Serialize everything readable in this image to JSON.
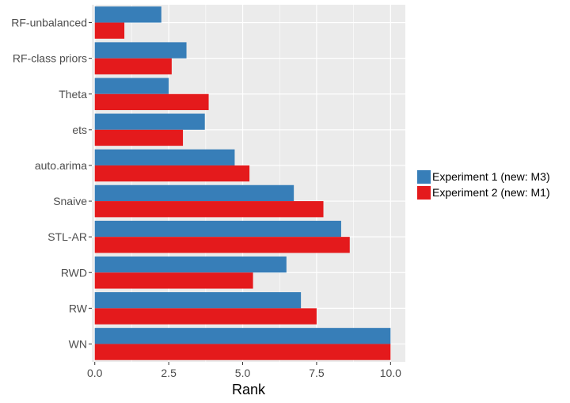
{
  "chart_data": {
    "type": "bar",
    "orientation": "horizontal",
    "title": "",
    "xlabel": "Rank",
    "ylabel": "",
    "xlim": [
      -0.1,
      10.5
    ],
    "x_ticks": [
      0,
      2.5,
      5,
      7.5,
      10
    ],
    "x_tick_labels": [
      "0.0",
      "2.5",
      "5.0",
      "7.5",
      "10.0"
    ],
    "categories": [
      "RF-unbalanced",
      "RF-class priors",
      "Theta",
      "ets",
      "auto.arima",
      "Snaive",
      "STL-AR",
      "RWD",
      "RW",
      "WN"
    ],
    "series": [
      {
        "name": "Experiment 1 (new: M3)",
        "color": "#377EB8",
        "values": [
          2.25,
          3.1,
          2.5,
          3.72,
          4.73,
          6.73,
          8.33,
          6.48,
          6.97,
          10.0
        ]
      },
      {
        "name": "Experiment 2 (new: M1)",
        "color": "#E41A1C",
        "values": [
          1.0,
          2.6,
          3.85,
          2.98,
          5.23,
          7.73,
          8.62,
          5.35,
          7.5,
          10.0
        ]
      }
    ],
    "grid": true,
    "legend_position": "right",
    "panel_background": "#EBEBEB",
    "grid_color": "#FFFFFF"
  }
}
